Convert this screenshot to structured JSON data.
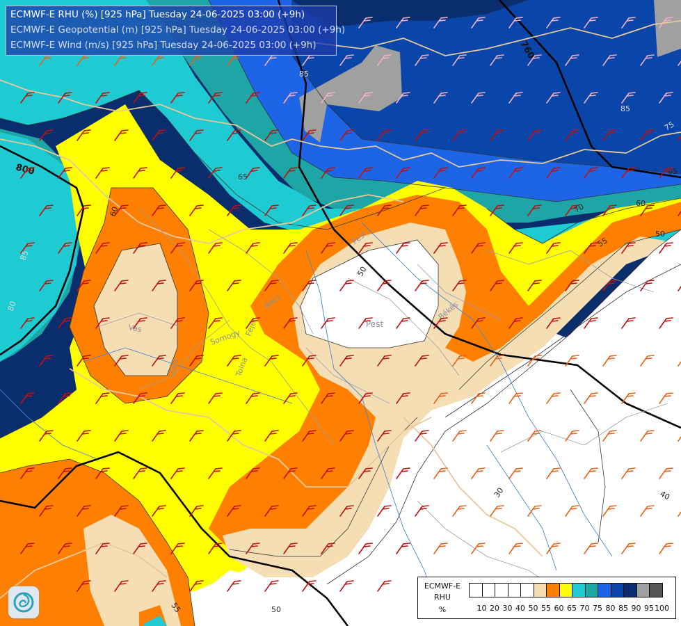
{
  "header": {
    "lines": [
      "ECMWF-E RHU (%) [925 hPa] Tuesday 24-06-2025 03:00 (+9h)",
      "ECMWF-E Geopotential (m) [925 hPa] Tuesday 24-06-2025 03:00 (+9h)",
      "ECMWF-E Wind (m/s) [925 hPa] Tuesday 24-06-2025 03:00 (+9h)"
    ]
  },
  "geopotential_labels": [
    "760",
    "800"
  ],
  "rhu_labels": [
    "85",
    "65",
    "60",
    "80",
    "85",
    "85",
    "75",
    "65",
    "60",
    "70",
    "50",
    "55",
    "50",
    "30",
    "40",
    "55",
    "50",
    "50"
  ],
  "place_labels": [
    "Pest",
    "Vas",
    "Zala",
    "Somogy",
    "Tolna",
    "Fejér",
    "Bács",
    "Pest",
    "Békés"
  ],
  "legend": {
    "title": [
      "ECMWF-E",
      "RHU",
      "%"
    ],
    "ticks": [
      "10",
      "20",
      "30",
      "40",
      "50",
      "55",
      "60",
      "65",
      "70",
      "75",
      "80",
      "85",
      "90",
      "95",
      "100"
    ],
    "colors": [
      "#ffffff",
      "#ffffff",
      "#ffffff",
      "#ffffff",
      "#ffffff",
      "#f5deb3",
      "#ff8000",
      "#ffff00",
      "#1ecbd2",
      "#1ea5a5",
      "#1e64e6",
      "#0a46aa",
      "#0a2d6e",
      "#a0a0a0",
      "#555555"
    ]
  },
  "logo_icon": "ecmwf-swirl-icon"
}
